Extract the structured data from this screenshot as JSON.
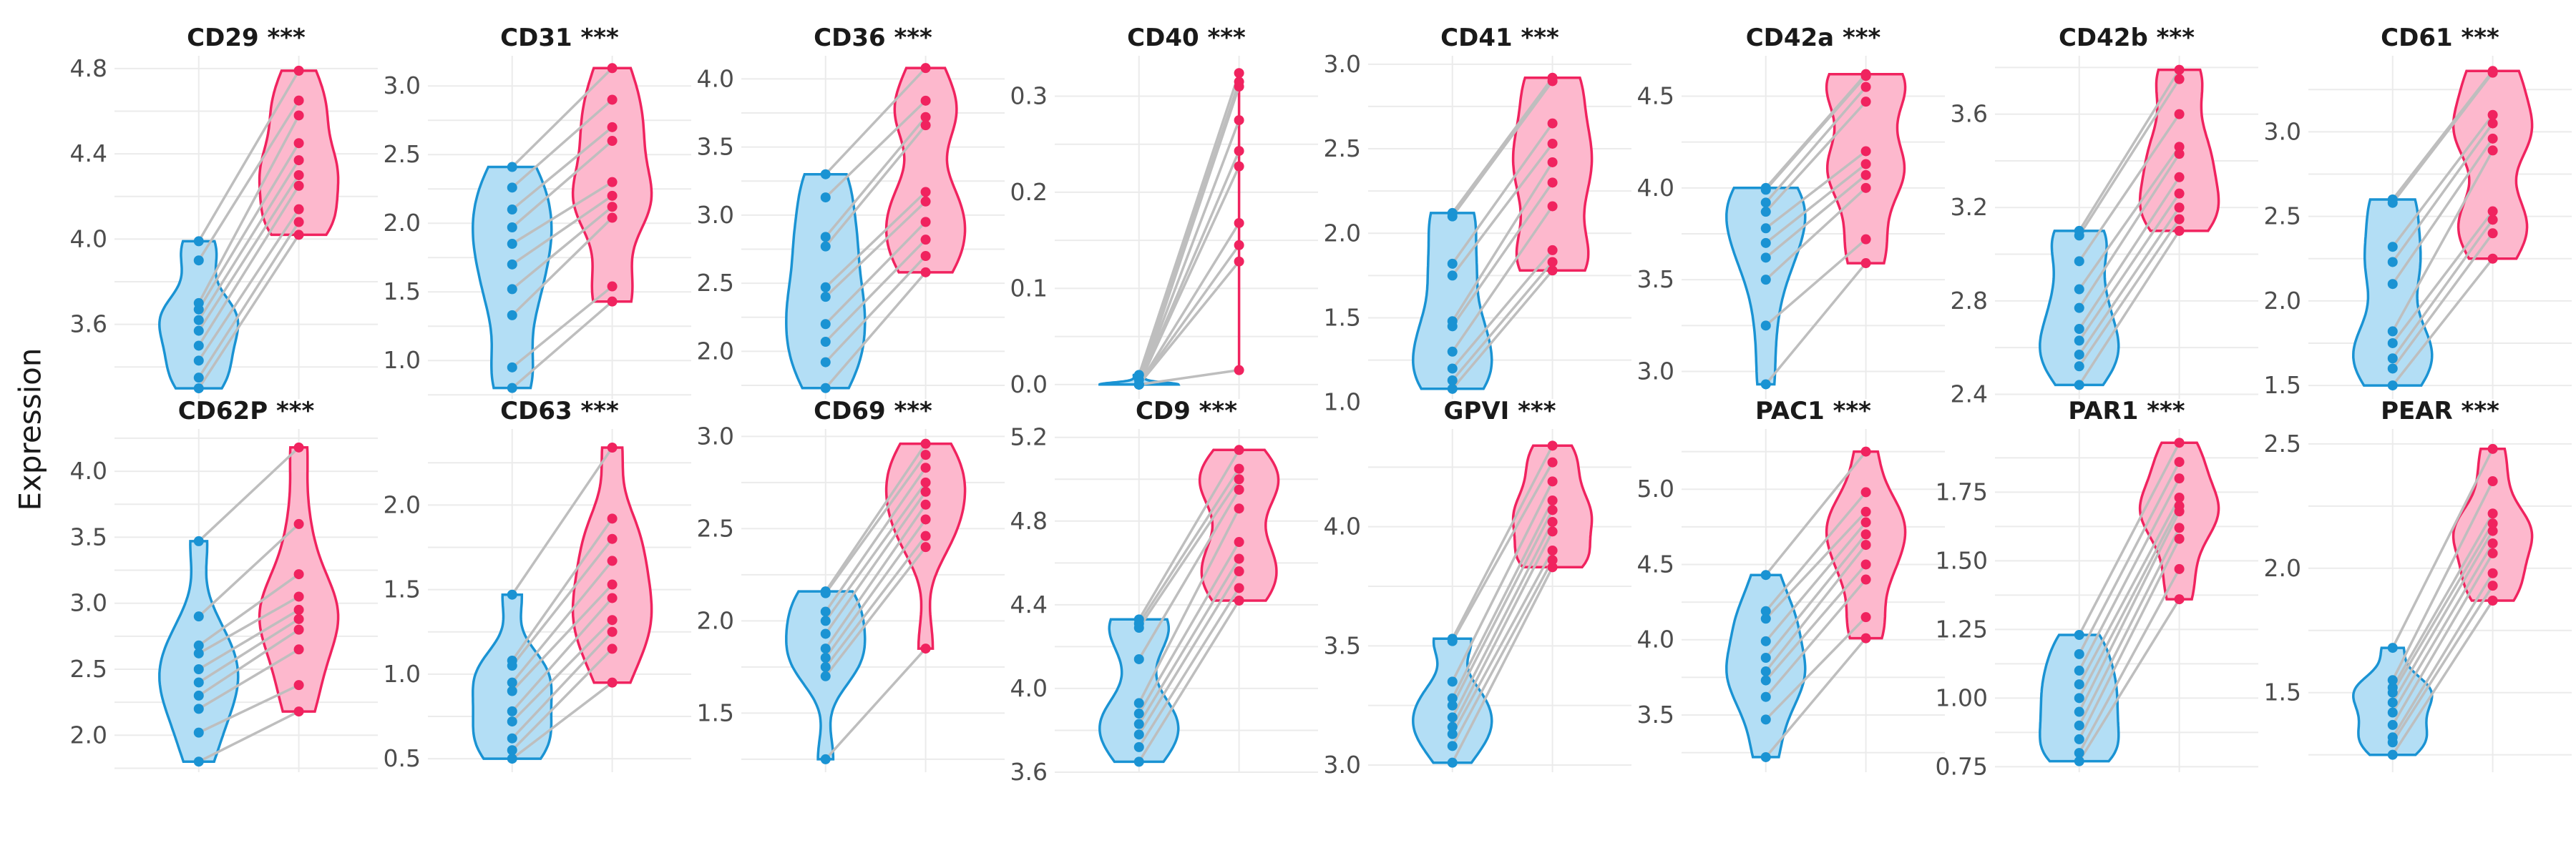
{
  "figure": {
    "ylabel": "Expression",
    "significance": "***"
  },
  "colors": {
    "group1_fill": "#b3def5",
    "group1_line": "#1a93d3",
    "group2_fill": "#fdb8cd",
    "group2_line": "#f0235f",
    "pair_line": "#bebebe",
    "grid": "#ebebeb"
  },
  "chart_data": [
    {
      "type": "violin",
      "title": "CD29 ***",
      "ylim": [
        3.25,
        4.86
      ],
      "yticks": [
        "3.6",
        "4.0",
        "4.4",
        "4.8"
      ],
      "grid": true,
      "group1": [
        3.3,
        3.35,
        3.43,
        3.5,
        3.57,
        3.62,
        3.67,
        3.7,
        3.9,
        3.99
      ],
      "group2": [
        4.02,
        4.08,
        4.14,
        4.25,
        4.3,
        4.37,
        4.45,
        4.58,
        4.65,
        4.79
      ]
    },
    {
      "type": "violin",
      "title": "CD31 ***",
      "ylim": [
        0.72,
        3.22
      ],
      "yticks": [
        "1.0",
        "1.5",
        "2.0",
        "2.5",
        "3.0"
      ],
      "grid": true,
      "group1": [
        0.8,
        0.95,
        1.33,
        1.52,
        1.7,
        1.85,
        1.97,
        2.1,
        2.26,
        2.41
      ],
      "group2": [
        1.43,
        1.54,
        2.04,
        2.12,
        2.2,
        2.3,
        2.6,
        2.7,
        2.9,
        3.13
      ]
    },
    {
      "type": "violin",
      "title": "CD36 ***",
      "ylim": [
        1.65,
        4.17
      ],
      "yticks": [
        "2.0",
        "2.5",
        "3.0",
        "3.5",
        "4.0"
      ],
      "grid": true,
      "group1": [
        1.73,
        1.92,
        2.07,
        2.2,
        2.4,
        2.47,
        2.77,
        2.84,
        3.13,
        3.3
      ],
      "group2": [
        2.58,
        2.7,
        2.82,
        2.95,
        3.1,
        3.17,
        3.66,
        3.72,
        3.84,
        4.08
      ]
    },
    {
      "type": "violin",
      "title": "CD40 ***",
      "ylim": [
        -0.015,
        0.342
      ],
      "yticks": [
        "0.0",
        "0.1",
        "0.2",
        "0.3"
      ],
      "grid": true,
      "group1": [
        0.0,
        0.0,
        0.0,
        0.0,
        0.0,
        0.0,
        0.0,
        0.0,
        0.005,
        0.01
      ],
      "group2": [
        0.015,
        0.128,
        0.145,
        0.168,
        0.227,
        0.243,
        0.275,
        0.31,
        0.315,
        0.324
      ]
    },
    {
      "type": "violin",
      "title": "CD41 ***",
      "ylim": [
        1.02,
        3.05
      ],
      "yticks": [
        "1.0",
        "1.5",
        "2.0",
        "2.5",
        "3.0"
      ],
      "grid": true,
      "group1": [
        1.08,
        1.13,
        1.2,
        1.3,
        1.45,
        1.48,
        1.75,
        1.82,
        2.1,
        2.12
      ],
      "group2": [
        1.78,
        1.83,
        1.9,
        2.16,
        2.3,
        2.42,
        2.53,
        2.65,
        2.9,
        2.92
      ]
    },
    {
      "type": "violin",
      "title": "CD42a ***",
      "ylim": [
        2.85,
        4.72
      ],
      "yticks": [
        "3.0",
        "3.5",
        "4.0",
        "4.5"
      ],
      "grid": true,
      "group1": [
        2.93,
        3.25,
        3.5,
        3.62,
        3.7,
        3.78,
        3.87,
        3.92,
        3.99,
        4.0
      ],
      "group2": [
        3.59,
        3.72,
        4.0,
        4.07,
        4.13,
        4.2,
        4.47,
        4.55,
        4.61,
        4.62
      ]
    },
    {
      "type": "violin",
      "title": "CD42b ***",
      "ylim": [
        2.38,
        3.85
      ],
      "yticks": [
        "2.4",
        "2.8",
        "3.2",
        "3.6"
      ],
      "grid": true,
      "group1": [
        2.44,
        2.52,
        2.57,
        2.63,
        2.68,
        2.77,
        2.85,
        2.97,
        3.08,
        3.1
      ],
      "group2": [
        3.1,
        3.15,
        3.2,
        3.26,
        3.33,
        3.43,
        3.46,
        3.6,
        3.75,
        3.79
      ]
    },
    {
      "type": "violin",
      "title": "CD61 ***",
      "ylim": [
        1.42,
        3.45
      ],
      "yticks": [
        "1.5",
        "2.0",
        "2.5",
        "3.0"
      ],
      "grid": true,
      "group1": [
        1.5,
        1.6,
        1.66,
        1.75,
        1.82,
        2.1,
        2.23,
        2.32,
        2.58,
        2.6
      ],
      "group2": [
        2.25,
        2.4,
        2.48,
        2.53,
        2.89,
        2.96,
        3.05,
        3.1,
        3.35,
        3.36
      ]
    },
    {
      "type": "violin",
      "title": "CD62P ***",
      "ylim": [
        1.72,
        4.32
      ],
      "yticks": [
        "2.0",
        "2.5",
        "3.0",
        "3.5",
        "4.0"
      ],
      "grid": true,
      "group1": [
        1.8,
        2.02,
        2.2,
        2.3,
        2.4,
        2.5,
        2.62,
        2.68,
        2.9,
        3.47
      ],
      "group2": [
        2.18,
        2.38,
        2.65,
        2.8,
        2.88,
        2.95,
        3.05,
        3.22,
        3.6,
        4.18
      ]
    },
    {
      "type": "violin",
      "title": "CD63 ***",
      "ylim": [
        0.42,
        2.45
      ],
      "yticks": [
        "0.5",
        "1.0",
        "1.5",
        "2.0"
      ],
      "grid": true,
      "group1": [
        0.5,
        0.55,
        0.62,
        0.72,
        0.78,
        0.9,
        0.95,
        1.05,
        1.08,
        1.47
      ],
      "group2": [
        0.95,
        1.15,
        1.25,
        1.32,
        1.45,
        1.53,
        1.67,
        1.8,
        1.92,
        2.34
      ]
    },
    {
      "type": "violin",
      "title": "CD69 ***",
      "ylim": [
        1.18,
        3.04
      ],
      "yticks": [
        "1.5",
        "2.0",
        "2.5",
        "3.0"
      ],
      "grid": true,
      "group1": [
        1.25,
        1.7,
        1.75,
        1.8,
        1.85,
        1.93,
        2.0,
        2.05,
        2.15,
        2.16
      ],
      "group2": [
        1.85,
        2.4,
        2.46,
        2.55,
        2.63,
        2.7,
        2.75,
        2.83,
        2.9,
        2.96
      ]
    },
    {
      "type": "violin",
      "title": "CD9 ***",
      "ylim": [
        3.6,
        5.24
      ],
      "yticks": [
        "3.6",
        "4.0",
        "4.4",
        "4.8",
        "5.2"
      ],
      "grid": true,
      "group1": [
        3.65,
        3.72,
        3.78,
        3.83,
        3.88,
        3.93,
        4.14,
        4.29,
        4.31,
        4.33
      ],
      "group2": [
        4.42,
        4.48,
        4.56,
        4.62,
        4.7,
        4.86,
        4.95,
        5.0,
        5.05,
        5.14
      ]
    },
    {
      "type": "violin",
      "title": "GPVI ***",
      "ylim": [
        2.97,
        4.41
      ],
      "yticks": [
        "3.0",
        "3.5",
        "4.0"
      ],
      "grid": true,
      "group1": [
        3.01,
        3.08,
        3.13,
        3.16,
        3.2,
        3.25,
        3.28,
        3.35,
        3.52,
        3.53
      ],
      "group2": [
        3.83,
        3.86,
        3.9,
        3.98,
        4.02,
        4.07,
        4.11,
        4.19,
        4.27,
        4.34
      ]
    },
    {
      "type": "violin",
      "title": "PAC1 ***",
      "ylim": [
        3.12,
        5.4
      ],
      "yticks": [
        "3.5",
        "4.0",
        "4.5",
        "5.0"
      ],
      "grid": true,
      "group1": [
        3.22,
        3.47,
        3.62,
        3.73,
        3.79,
        3.88,
        3.99,
        4.14,
        4.19,
        4.43
      ],
      "group2": [
        4.01,
        4.15,
        4.4,
        4.5,
        4.63,
        4.7,
        4.78,
        4.85,
        4.98,
        5.25
      ]
    },
    {
      "type": "violin",
      "title": "PAR1 ***",
      "ylim": [
        0.73,
        1.98
      ],
      "yticks": [
        "0.75",
        "1.00",
        "1.25",
        "1.50",
        "1.75"
      ],
      "grid": true,
      "group1": [
        0.77,
        0.8,
        0.85,
        0.9,
        0.95,
        1.0,
        1.05,
        1.1,
        1.16,
        1.23
      ],
      "group2": [
        1.36,
        1.47,
        1.58,
        1.62,
        1.68,
        1.7,
        1.73,
        1.8,
        1.86,
        1.93
      ]
    },
    {
      "type": "violin",
      "title": "PEAR ***",
      "ylim": [
        1.18,
        2.56
      ],
      "yticks": [
        "1.5",
        "2.0",
        "2.5"
      ],
      "grid": true,
      "group1": [
        1.25,
        1.3,
        1.32,
        1.37,
        1.42,
        1.46,
        1.5,
        1.52,
        1.55,
        1.68
      ],
      "group2": [
        1.87,
        1.93,
        1.98,
        2.06,
        2.1,
        2.15,
        2.18,
        2.22,
        2.35,
        2.48
      ]
    }
  ]
}
